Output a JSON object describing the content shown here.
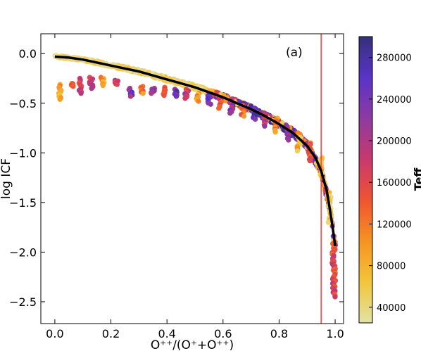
{
  "chart_data": {
    "type": "scatter",
    "annotation": "(a)",
    "xlabel": "O⁺⁺/(O⁺+O⁺⁺)",
    "ylabel": "log ICF",
    "colorbar_label": "Teff",
    "xlim": [
      -0.05,
      1.03
    ],
    "ylim": [
      -2.72,
      0.2
    ],
    "x_ticks": [
      0.0,
      0.2,
      0.4,
      0.6,
      0.8,
      1.0
    ],
    "x_tick_labels": [
      "0.0",
      "0.2",
      "0.4",
      "0.6",
      "0.8",
      "1.0"
    ],
    "y_ticks": [
      0.0,
      -0.5,
      -1.0,
      -1.5,
      -2.0,
      -2.5
    ],
    "y_tick_labels": [
      "0.0",
      "−0.5",
      "−1.0",
      "−1.5",
      "−2.0",
      "−2.5"
    ],
    "colorbar_range": [
      25000,
      300000
    ],
    "colorbar_ticks": [
      40000,
      80000,
      120000,
      160000,
      200000,
      240000,
      280000
    ],
    "colorbar_tick_labels": [
      "40000",
      "80000",
      "120000",
      "160000",
      "200000",
      "240000",
      "280000"
    ],
    "colormap": [
      "#e2e2a6",
      "#f3c53a",
      "#f69320",
      "#ef5430",
      "#c9386e",
      "#8e3aa1",
      "#5a33c9",
      "#34307a"
    ],
    "vertical_line_x": 0.95,
    "vertical_line_color": "#ff3b3b",
    "fit_curve": {
      "color": "#000000",
      "x": [
        0.0,
        0.05,
        0.1,
        0.15,
        0.2,
        0.25,
        0.3,
        0.35,
        0.4,
        0.45,
        0.5,
        0.55,
        0.6,
        0.65,
        0.7,
        0.75,
        0.8,
        0.85,
        0.9,
        0.93,
        0.95,
        0.97,
        0.98,
        0.99,
        1.0
      ],
      "y": [
        -0.03,
        -0.04,
        -0.06,
        -0.09,
        -0.12,
        -0.15,
        -0.18,
        -0.22,
        -0.26,
        -0.3,
        -0.34,
        -0.39,
        -0.44,
        -0.5,
        -0.56,
        -0.63,
        -0.71,
        -0.8,
        -0.93,
        -1.05,
        -1.18,
        -1.38,
        -1.55,
        -1.73,
        -1.94
      ]
    },
    "band": {
      "x": [
        0.0,
        0.1,
        0.2,
        0.3,
        0.4,
        0.5,
        0.6,
        0.7,
        0.8,
        0.85,
        0.9,
        0.95,
        0.98,
        1.0
      ],
      "y": [
        -0.03,
        -0.06,
        -0.12,
        -0.18,
        -0.26,
        -0.34,
        -0.44,
        -0.56,
        -0.71,
        -0.8,
        -0.93,
        -1.18,
        -1.55,
        -1.94
      ]
    },
    "clusters": [
      {
        "x": 0.02,
        "y": [
          -0.31,
          -0.46
        ],
        "teff": 90000
      },
      {
        "x": 0.06,
        "y": [
          -0.3,
          -0.33
        ],
        "teff": 150000
      },
      {
        "x": 0.09,
        "y": [
          -0.25,
          -0.4
        ],
        "teff": 170000
      },
      {
        "x": 0.13,
        "y": [
          -0.24,
          -0.35
        ],
        "teff": 190000
      },
      {
        "x": 0.17,
        "y": [
          -0.24,
          -0.32
        ],
        "teff": 100000
      },
      {
        "x": 0.22,
        "y": [
          -0.27,
          -0.31
        ],
        "teff": 180000
      },
      {
        "x": 0.27,
        "y": [
          -0.35,
          -0.43
        ],
        "teff": 230000
      },
      {
        "x": 0.31,
        "y": [
          -0.33,
          -0.4
        ],
        "teff": 120000
      },
      {
        "x": 0.35,
        "y": [
          -0.35,
          -0.4
        ],
        "teff": 210000
      },
      {
        "x": 0.39,
        "y": [
          -0.34,
          -0.42
        ],
        "teff": 140000
      },
      {
        "x": 0.43,
        "y": [
          -0.36,
          -0.43
        ],
        "teff": 250000
      },
      {
        "x": 0.47,
        "y": [
          -0.36,
          -0.45
        ],
        "teff": 180000
      },
      {
        "x": 0.51,
        "y": [
          -0.4,
          -0.48
        ],
        "teff": 90000
      },
      {
        "x": 0.55,
        "y": [
          -0.41,
          -0.51
        ],
        "teff": 240000
      },
      {
        "x": 0.59,
        "y": [
          -0.44,
          -0.55
        ],
        "teff": 160000
      },
      {
        "x": 0.63,
        "y": [
          -0.48,
          -0.6
        ],
        "teff": 220000
      },
      {
        "x": 0.67,
        "y": [
          -0.52,
          -0.63
        ],
        "teff": 130000
      },
      {
        "x": 0.71,
        "y": [
          -0.55,
          -0.66
        ],
        "teff": 260000
      },
      {
        "x": 0.75,
        "y": [
          -0.6,
          -0.73
        ],
        "teff": 190000
      },
      {
        "x": 0.79,
        "y": [
          -0.65,
          -0.79
        ],
        "teff": 110000
      },
      {
        "x": 0.83,
        "y": [
          -0.72,
          -0.87
        ],
        "teff": 210000
      },
      {
        "x": 0.87,
        "y": [
          -0.8,
          -0.98
        ],
        "teff": 80000
      },
      {
        "x": 0.91,
        "y": [
          -0.9,
          -1.08
        ],
        "teff": 150000
      },
      {
        "x": 0.95,
        "y": [
          -1.05,
          -1.25
        ],
        "teff": 70000
      },
      {
        "x": 0.98,
        "y": [
          -1.4,
          -1.7
        ],
        "teff": 60000
      },
      {
        "x": 0.995,
        "y": [
          -1.9,
          -2.45
        ],
        "teff": 160000
      }
    ]
  }
}
